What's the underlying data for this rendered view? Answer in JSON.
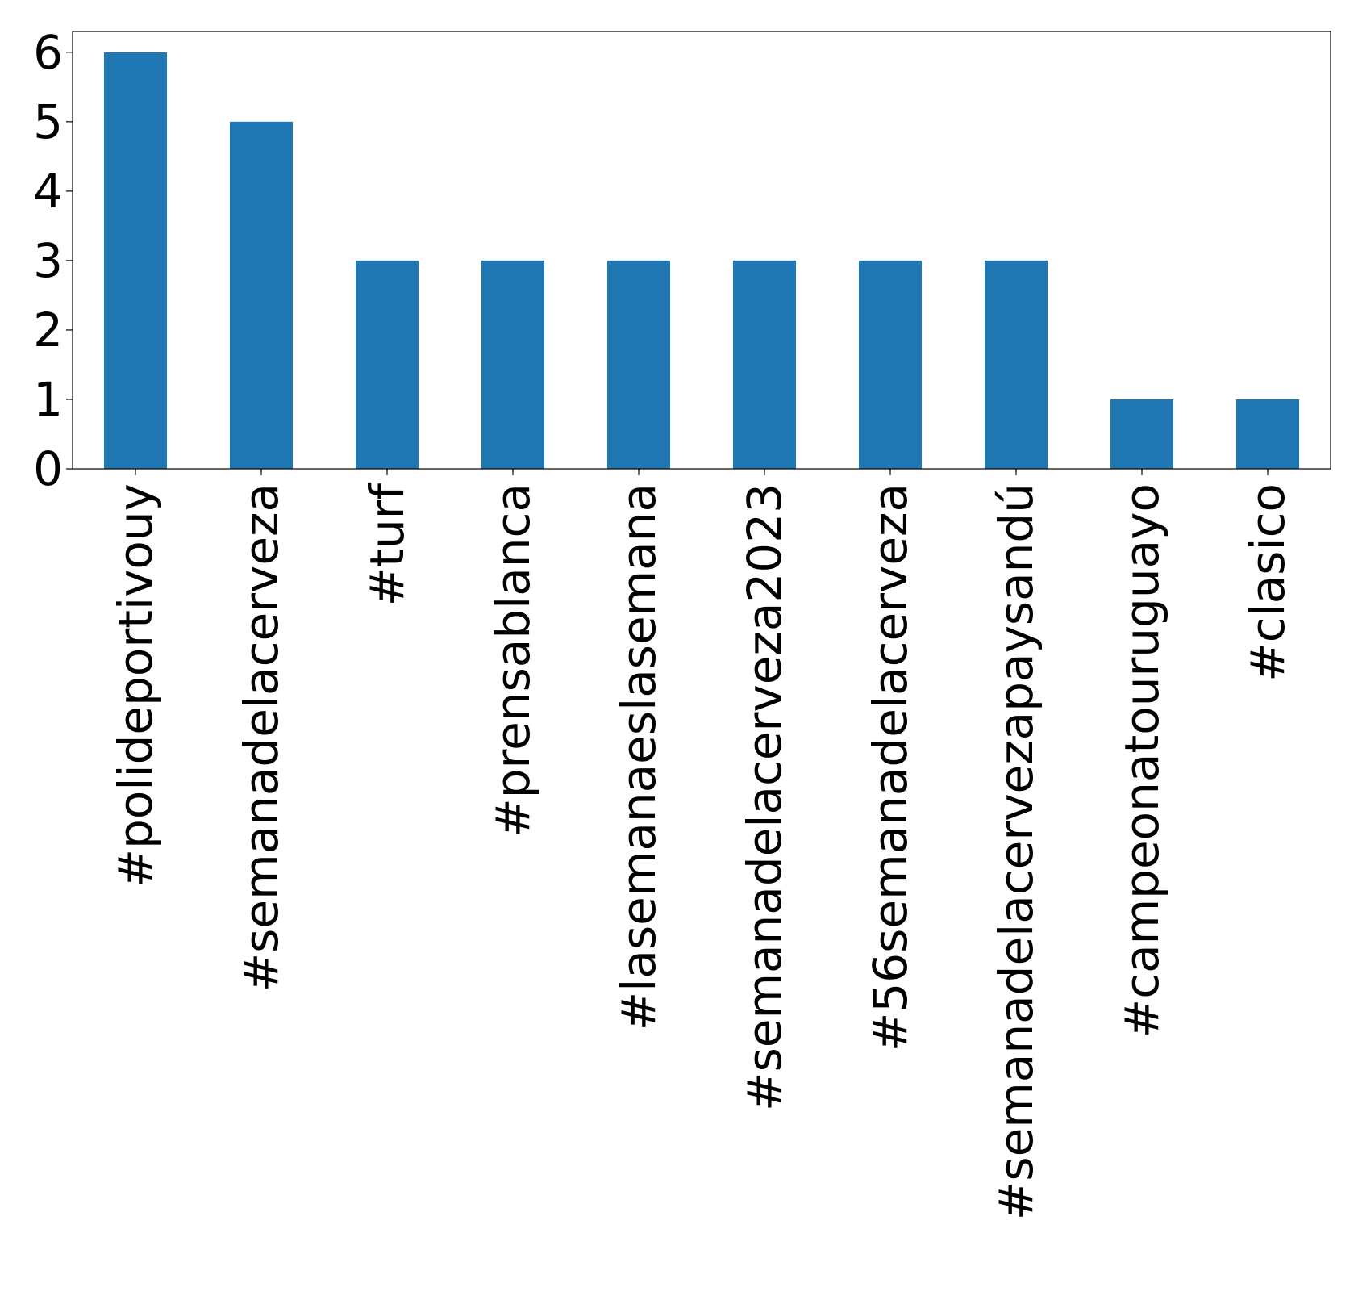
{
  "chart_data": {
    "type": "bar",
    "categories": [
      "#polideportivouy",
      "#semanadelacerveza",
      "#turf",
      "#prensablanca",
      "#lasemanaeslasemana",
      "#semanadelacerveza2023",
      "#56semanadelacerveza",
      "#semanadelacervezapaysandú",
      "#campeonatouruguayo",
      "#clasico"
    ],
    "values": [
      6,
      5,
      3,
      3,
      3,
      3,
      3,
      3,
      1,
      1
    ],
    "ylim": [
      0,
      6.3
    ],
    "yticks": [
      "0",
      "1",
      "2",
      "3",
      "4",
      "5",
      "6"
    ],
    "bar_color": "#1f77b4",
    "title": "",
    "xlabel": "",
    "ylabel": "",
    "grid": false,
    "legend": "none"
  }
}
